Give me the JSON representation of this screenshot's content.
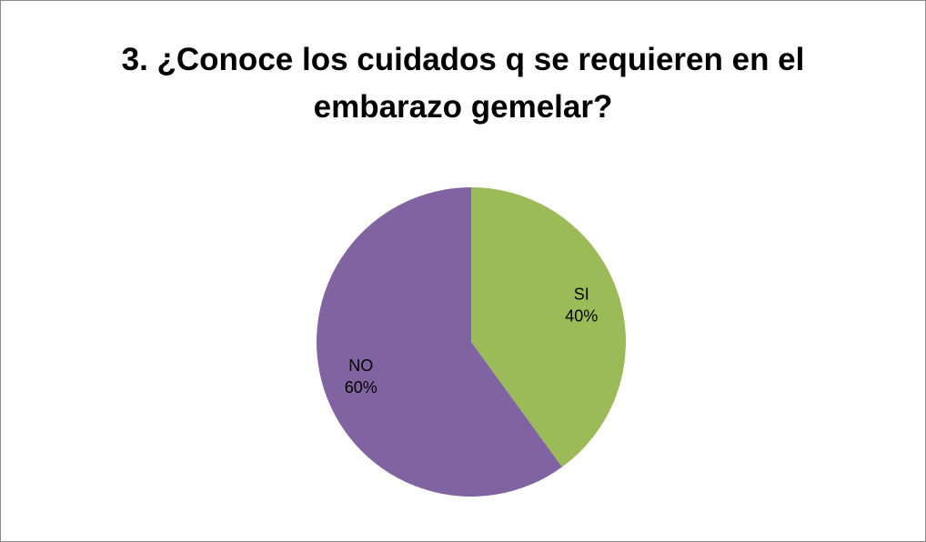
{
  "chart_data": {
    "type": "pie",
    "title": "3. ¿Conoce los cuidados q se requieren en el embarazo gemelar?",
    "categories": [
      "SI",
      "NO"
    ],
    "values": [
      40,
      60
    ],
    "value_labels": [
      "40%",
      "60%"
    ],
    "colors": [
      "#9bbb59",
      "#8064a2"
    ]
  }
}
